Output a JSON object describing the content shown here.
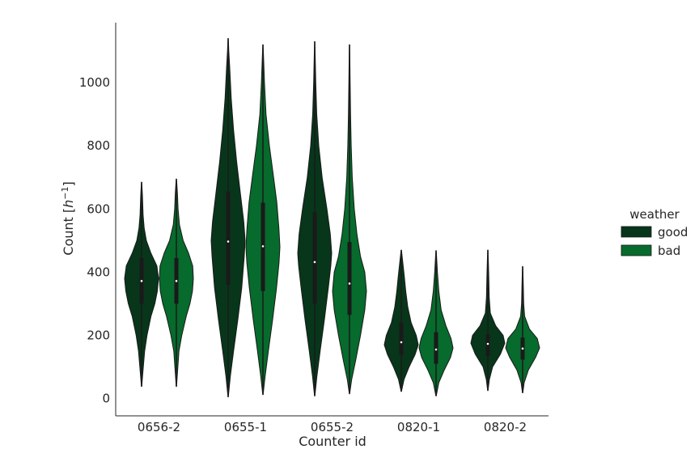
{
  "chart_data": {
    "type": "violin",
    "xlabel": "Counter id",
    "ylabel_prefix": "Count [",
    "ylabel_base": "h",
    "ylabel_sup": "−1",
    "ylabel_suffix": "]",
    "ylim": [
      -55,
      1190
    ],
    "yticks": [
      0,
      200,
      400,
      600,
      800,
      1000
    ],
    "categories": [
      "0656-2",
      "0655-1",
      "0655-2",
      "0820-1",
      "0820-2"
    ],
    "legend": {
      "title": "weather",
      "placement": "right",
      "entries": [
        "good",
        "bad"
      ]
    },
    "series": [
      {
        "name": "good",
        "color": "#07361a",
        "violins": [
          {
            "min": 38,
            "max": 685,
            "q1": 300,
            "median": 372,
            "q3": 445,
            "profile": [
              [
                38,
                0.01
              ],
              [
                80,
                0.07
              ],
              [
                150,
                0.18
              ],
              [
                200,
                0.32
              ],
              [
                260,
                0.55
              ],
              [
                300,
                0.78
              ],
              [
                340,
                0.93
              ],
              [
                380,
                1.0
              ],
              [
                420,
                0.9
              ],
              [
                460,
                0.55
              ],
              [
                500,
                0.28
              ],
              [
                540,
                0.15
              ],
              [
                580,
                0.09
              ],
              [
                640,
                0.05
              ],
              [
                685,
                0.01
              ]
            ]
          },
          {
            "min": 5,
            "max": 1140,
            "q1": 360,
            "median": 497,
            "q3": 655,
            "profile": [
              [
                5,
                0.01
              ],
              [
                70,
                0.13
              ],
              [
                150,
                0.32
              ],
              [
                250,
                0.57
              ],
              [
                350,
                0.8
              ],
              [
                450,
                0.95
              ],
              [
                500,
                1.0
              ],
              [
                560,
                0.92
              ],
              [
                650,
                0.72
              ],
              [
                750,
                0.5
              ],
              [
                850,
                0.32
              ],
              [
                950,
                0.18
              ],
              [
                1050,
                0.09
              ],
              [
                1100,
                0.04
              ],
              [
                1140,
                0.01
              ]
            ]
          },
          {
            "min": 8,
            "max": 1130,
            "q1": 300,
            "median": 432,
            "q3": 590,
            "profile": [
              [
                8,
                0.01
              ],
              [
                70,
                0.13
              ],
              [
                150,
                0.32
              ],
              [
                250,
                0.57
              ],
              [
                350,
                0.8
              ],
              [
                420,
                0.95
              ],
              [
                460,
                1.0
              ],
              [
                520,
                0.92
              ],
              [
                600,
                0.72
              ],
              [
                700,
                0.44
              ],
              [
                800,
                0.24
              ],
              [
                900,
                0.12
              ],
              [
                1000,
                0.06
              ],
              [
                1130,
                0.01
              ]
            ]
          },
          {
            "min": 22,
            "max": 470,
            "q1": 138,
            "median": 178,
            "q3": 240,
            "profile": [
              [
                22,
                0.01
              ],
              [
                60,
                0.16
              ],
              [
                100,
                0.46
              ],
              [
                140,
                0.82
              ],
              [
                170,
                1.0
              ],
              [
                200,
                0.88
              ],
              [
                240,
                0.58
              ],
              [
                290,
                0.38
              ],
              [
                340,
                0.26
              ],
              [
                390,
                0.17
              ],
              [
                430,
                0.09
              ],
              [
                470,
                0.01
              ]
            ]
          },
          {
            "min": 25,
            "max": 470,
            "q1": 135,
            "median": 173,
            "q3": 203,
            "profile": [
              [
                25,
                0.01
              ],
              [
                60,
                0.09
              ],
              [
                100,
                0.28
              ],
              [
                140,
                0.74
              ],
              [
                175,
                1.0
              ],
              [
                200,
                0.9
              ],
              [
                230,
                0.46
              ],
              [
                270,
                0.15
              ],
              [
                320,
                0.08
              ],
              [
                370,
                0.06
              ],
              [
                420,
                0.04
              ],
              [
                470,
                0.01
              ]
            ]
          }
        ]
      },
      {
        "name": "bad",
        "color": "#066b2c",
        "violins": [
          {
            "min": 38,
            "max": 695,
            "q1": 300,
            "median": 372,
            "q3": 445,
            "profile": [
              [
                38,
                0.01
              ],
              [
                80,
                0.06
              ],
              [
                150,
                0.15
              ],
              [
                200,
                0.32
              ],
              [
                260,
                0.58
              ],
              [
                300,
                0.8
              ],
              [
                340,
                0.95
              ],
              [
                380,
                1.0
              ],
              [
                420,
                0.96
              ],
              [
                460,
                0.72
              ],
              [
                500,
                0.4
              ],
              [
                550,
                0.18
              ],
              [
                600,
                0.1
              ],
              [
                650,
                0.06
              ],
              [
                695,
                0.01
              ]
            ]
          },
          {
            "min": 12,
            "max": 1120,
            "q1": 340,
            "median": 482,
            "q3": 620,
            "profile": [
              [
                12,
                0.01
              ],
              [
                70,
                0.13
              ],
              [
                150,
                0.32
              ],
              [
                250,
                0.57
              ],
              [
                350,
                0.8
              ],
              [
                430,
                0.95
              ],
              [
                480,
                1.0
              ],
              [
                540,
                0.94
              ],
              [
                620,
                0.82
              ],
              [
                700,
                0.63
              ],
              [
                800,
                0.38
              ],
              [
                900,
                0.18
              ],
              [
                1000,
                0.09
              ],
              [
                1120,
                0.01
              ]
            ]
          },
          {
            "min": 15,
            "max": 1120,
            "q1": 265,
            "median": 364,
            "q3": 495,
            "profile": [
              [
                15,
                0.01
              ],
              [
                60,
                0.13
              ],
              [
                120,
                0.36
              ],
              [
                200,
                0.65
              ],
              [
                280,
                0.9
              ],
              [
                340,
                1.0
              ],
              [
                400,
                0.9
              ],
              [
                450,
                0.65
              ],
              [
                520,
                0.44
              ],
              [
                600,
                0.28
              ],
              [
                700,
                0.16
              ],
              [
                800,
                0.1
              ],
              [
                900,
                0.06
              ],
              [
                1000,
                0.04
              ],
              [
                1120,
                0.01
              ]
            ]
          },
          {
            "min": 8,
            "max": 468,
            "q1": 110,
            "median": 155,
            "q3": 210,
            "profile": [
              [
                8,
                0.01
              ],
              [
                50,
                0.16
              ],
              [
                90,
                0.48
              ],
              [
                130,
                0.85
              ],
              [
                160,
                1.0
              ],
              [
                190,
                0.88
              ],
              [
                230,
                0.58
              ],
              [
                280,
                0.3
              ],
              [
                340,
                0.16
              ],
              [
                400,
                0.08
              ],
              [
                468,
                0.01
              ]
            ]
          },
          {
            "min": 18,
            "max": 418,
            "q1": 123,
            "median": 158,
            "q3": 193,
            "profile": [
              [
                18,
                0.01
              ],
              [
                50,
                0.09
              ],
              [
                90,
                0.34
              ],
              [
                130,
                0.76
              ],
              [
                160,
                1.0
              ],
              [
                190,
                0.86
              ],
              [
                220,
                0.4
              ],
              [
                260,
                0.12
              ],
              [
                300,
                0.06
              ],
              [
                360,
                0.04
              ],
              [
                418,
                0.01
              ]
            ]
          }
        ]
      }
    ]
  }
}
